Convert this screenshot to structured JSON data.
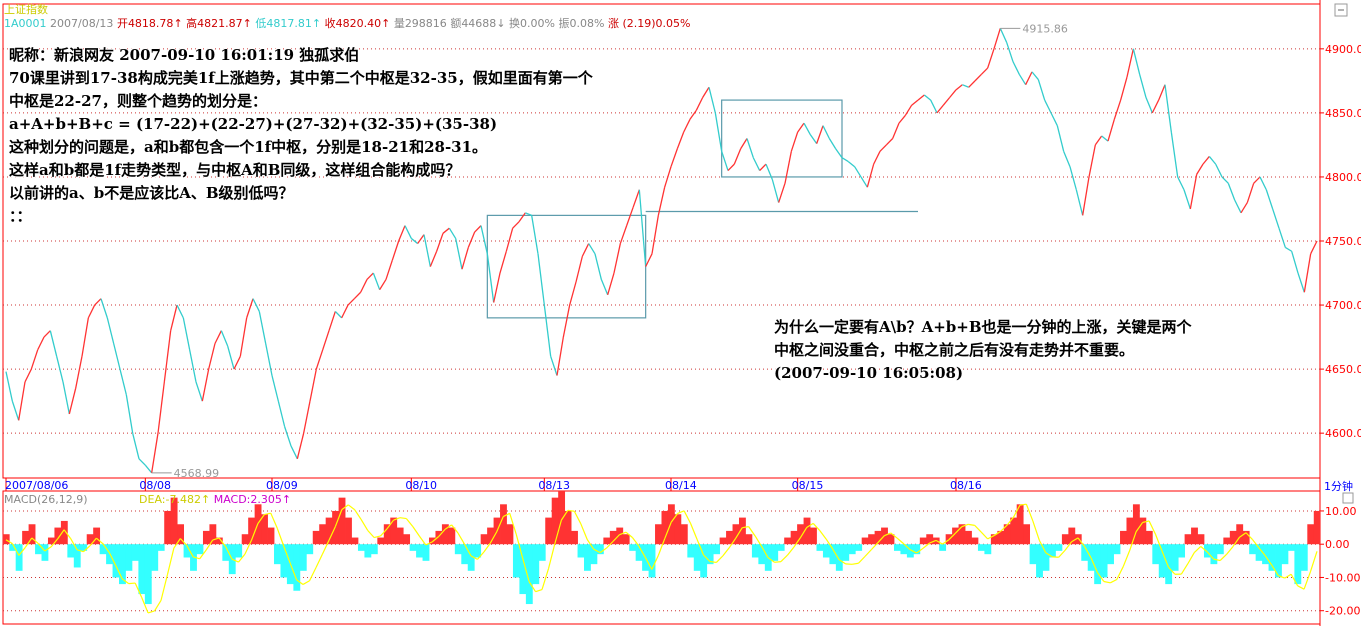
{
  "header": {
    "index_name": "上证指数",
    "code": "1A0001",
    "date": "2007/08/13",
    "open_label": "开",
    "open": "4818.78",
    "high_label": "高",
    "high": "4821.87",
    "low_label": "低",
    "low": "4817.81",
    "close_label": "收",
    "close": "4820.40",
    "vol_label": "量",
    "vol": "298816",
    "amt_label": "额",
    "amt": "44688",
    "turnover_label": "换",
    "turnover": "0.00%",
    "amplitude_label": "振",
    "amplitude": "0.08%",
    "change_label": "涨",
    "change": "(2.19)0.05%"
  },
  "annotation_top": [
    "昵称：新浪网友  2007-09-10 16:01:19 独孤求伯",
    "70课里讲到17-38构成完美1f上涨趋势，其中第二个中枢是32-35，假如里面有第一个",
    "中枢是22-27，则整个趋势的划分是：",
    "a+A+b+B+c = (17-22)+(22-27)+(27-32)+(32-35)+(35-38)",
    "这种划分的问题是，a和b都包含一个1f中枢，分别是18-21和28-31。",
    "这样a和b都是1f走势类型，与中枢A和B同级，这样组合能构成吗？",
    "以前讲的a、b不是应该比A、B级别低吗？",
    "：："
  ],
  "annotation_right": [
    "为什么一定要有A\\b？A+b+B也是一分钟的上涨，关键是两个",
    "中枢之间没重合，中枢之前之后有没有走势并不重要。",
    "(2007-09-10 16:05:08)"
  ],
  "period_label": "1分钟",
  "macd_header": {
    "name": "MACD(26,12,9)",
    "dea_label": "DEA:",
    "dea": "-7.482",
    "macd_label": "MACD:",
    "macd": "2.305"
  },
  "colors": {
    "up": "#ff3333",
    "down": "#33cccc",
    "macd_pos": "#ff3333",
    "macd_neg": "#33ffff",
    "dea": "#ffff00",
    "axis": "#ff0000",
    "grid": "#cc3333",
    "box": "#5a9aaa",
    "dates": "#0000ff",
    "header": "#cc0000"
  },
  "chart_data": {
    "type": "line",
    "title": "上证指数",
    "x_tick_labels": [
      "2007/08/06",
      "08/08",
      "08/09",
      "08/10",
      "08/13",
      "08/14",
      "08/15",
      "08/16"
    ],
    "y_tick_labels": [
      "4900.00",
      "4850.00",
      "4800.00",
      "4750.00",
      "4700.00",
      "4650.00",
      "4600.00"
    ],
    "ylim": [
      4565,
      4935
    ],
    "annotations": [
      {
        "label": "4915.86",
        "type": "max"
      },
      {
        "label": "4568.99",
        "type": "min"
      }
    ],
    "series": [
      {
        "values": [
          4648,
          4625,
          4610,
          4640,
          4650,
          4665,
          4675,
          4680,
          4660,
          4640,
          4615,
          4635,
          4660,
          4690,
          4700,
          4705,
          4690,
          4670,
          4650,
          4630,
          4600,
          4580,
          4575,
          4569,
          4600,
          4640,
          4680,
          4700,
          4690,
          4665,
          4640,
          4625,
          4650,
          4670,
          4680,
          4668,
          4650,
          4660,
          4690,
          4705,
          4695,
          4670,
          4645,
          4625,
          4605,
          4590,
          4580,
          4600,
          4625,
          4650,
          4665,
          4680,
          4695,
          4690,
          4700,
          4705,
          4710,
          4720,
          4725,
          4712,
          4720,
          4735,
          4750,
          4762,
          4752,
          4748,
          4755,
          4730,
          4742,
          4756,
          4760,
          4752,
          4728,
          4745,
          4757,
          4762,
          4740,
          4702,
          4725,
          4742,
          4760,
          4765,
          4772,
          4770,
          4740,
          4700,
          4660,
          4645,
          4675,
          4700,
          4718,
          4738,
          4748,
          4740,
          4720,
          4708,
          4725,
          4748,
          4762,
          4776,
          4790,
          4730,
          4740,
          4770,
          4792,
          4808,
          4822,
          4835,
          4845,
          4852,
          4862,
          4870,
          4850,
          4820,
          4805,
          4810,
          4822,
          4830,
          4815,
          4805,
          4810,
          4798,
          4780,
          4795,
          4820,
          4835,
          4842,
          4833,
          4826,
          4840,
          4830,
          4822,
          4815,
          4812,
          4808,
          4800,
          4792,
          4810,
          4820,
          4825,
          4830,
          4842,
          4848,
          4856,
          4860,
          4864,
          4860,
          4850,
          4856,
          4862,
          4868,
          4872,
          4870,
          4875,
          4880,
          4885,
          4900,
          4916,
          4905,
          4890,
          4880,
          4872,
          4882,
          4876,
          4860,
          4850,
          4840,
          4820,
          4808,
          4790,
          4770,
          4800,
          4825,
          4832,
          4828,
          4845,
          4860,
          4878,
          4900,
          4880,
          4862,
          4850,
          4860,
          4872,
          4835,
          4800,
          4790,
          4775,
          4802,
          4810,
          4816,
          4810,
          4800,
          4795,
          4782,
          4772,
          4780,
          4795,
          4800,
          4790,
          4775,
          4760,
          4745,
          4742,
          4725,
          4710,
          4740,
          4750
        ]
      }
    ],
    "macd": {
      "ylim": [
        -24,
        16
      ],
      "y_tick_labels": [
        "10.00",
        "0.00",
        "-10.00",
        "-20.00"
      ],
      "hist": [
        3,
        -2,
        -8,
        4,
        6,
        -3,
        -5,
        2,
        5,
        7,
        -4,
        -7,
        -2,
        3,
        5,
        -3,
        -6,
        -10,
        -12,
        -8,
        -5,
        -15,
        -18,
        -8,
        -2,
        10,
        14,
        6,
        -4,
        -8,
        -3,
        4,
        6,
        2,
        -5,
        -9,
        -4,
        3,
        8,
        12,
        9,
        5,
        -6,
        -10,
        -12,
        -14,
        -8,
        -3,
        4,
        6,
        8,
        10,
        14,
        8,
        2,
        -2,
        -4,
        -3,
        2,
        6,
        8,
        5,
        3,
        -2,
        -4,
        -5,
        2,
        4,
        6,
        5,
        -3,
        -6,
        -8,
        -4,
        3,
        5,
        8,
        12,
        6,
        -10,
        -15,
        -18,
        -12,
        -5,
        8,
        14,
        16,
        10,
        4,
        -4,
        -8,
        -6,
        -3,
        2,
        4,
        5,
        3,
        -2,
        -5,
        -8,
        -10,
        6,
        10,
        12,
        9,
        6,
        -4,
        -8,
        -10,
        -6,
        -3,
        2,
        4,
        6,
        8,
        3,
        -4,
        -6,
        -8,
        -5,
        -2,
        2,
        4,
        6,
        8,
        5,
        -2,
        -4,
        -6,
        -8,
        -5,
        -3,
        -2,
        2,
        3,
        4,
        5,
        3,
        -2,
        -3,
        -4,
        -3,
        2,
        3,
        2,
        -2,
        3,
        5,
        6,
        4,
        2,
        -2,
        -3,
        3,
        4,
        6,
        8,
        12,
        6,
        -6,
        -10,
        -8,
        -4,
        -2,
        3,
        5,
        3,
        -5,
        -8,
        -12,
        -10,
        -6,
        -3,
        4,
        8,
        12,
        8,
        4,
        -6,
        -10,
        -12,
        -8,
        -4,
        3,
        5,
        3,
        -4,
        -6,
        -3,
        2,
        4,
        6,
        4,
        -3,
        -5,
        -6,
        -8,
        -10,
        -6,
        -2,
        -12,
        -8,
        6,
        10
      ]
    }
  }
}
